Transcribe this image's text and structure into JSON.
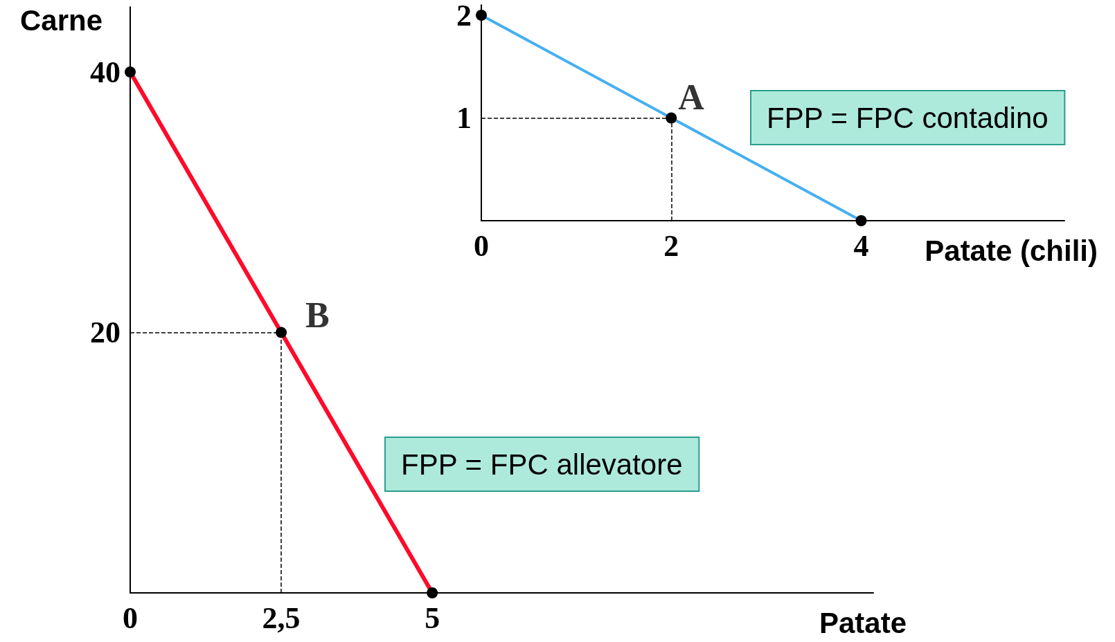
{
  "chart_data": [
    {
      "type": "line",
      "xlabel": "Patate",
      "ylabel": "Carne",
      "x": [
        0,
        2.5,
        5
      ],
      "values": [
        40,
        20,
        0
      ],
      "color": "#ff0a2a",
      "xlim": [
        0,
        12.3
      ],
      "ylim": [
        0,
        45
      ],
      "xticks": [
        0,
        {
          "value": 2.5,
          "label": "2,5"
        },
        5
      ],
      "yticks": [
        20,
        40
      ],
      "marker": "circle",
      "line_style": "solid",
      "ref_lines": [
        {
          "axis": "y",
          "value": 20,
          "line_style": "dashed",
          "color": "#000000"
        },
        {
          "axis": "x",
          "value": 2.5,
          "line_style": "dashed",
          "color": "#000000"
        }
      ],
      "annotations": [
        {
          "text": "B",
          "x": 2.5,
          "y": 20
        },
        "FPP = FPC allevatore"
      ]
    },
    {
      "type": "line",
      "xlabel": "Patate (chili)",
      "x": [
        0,
        2,
        4
      ],
      "values": [
        2,
        1,
        0
      ],
      "color": "#45b0f0",
      "xlim": [
        0,
        6.14
      ],
      "ylim": [
        0,
        2.1
      ],
      "xticks": [
        0,
        2,
        4
      ],
      "yticks": [
        1,
        2
      ],
      "marker": "circle",
      "line_style": "solid",
      "ref_lines": [
        {
          "axis": "y",
          "value": 1,
          "line_style": "dashed",
          "color": "#000000"
        },
        {
          "axis": "x",
          "value": 2,
          "line_style": "dashed",
          "color": "#000000"
        }
      ],
      "annotations": [
        {
          "text": "A",
          "x": 2,
          "y": 1
        },
        "FPP = FPC contadino"
      ]
    }
  ]
}
